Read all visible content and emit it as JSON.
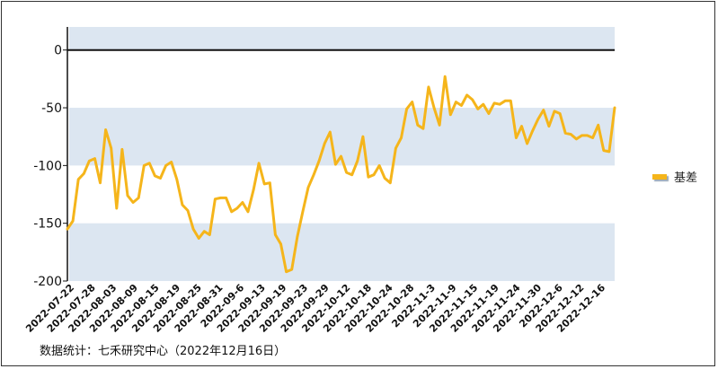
{
  "chart_data": {
    "type": "line",
    "title": "",
    "xlabel": "",
    "ylabel": "",
    "ylim": [
      -200,
      20
    ],
    "yticks": [
      0,
      -50,
      -100,
      -150,
      -200
    ],
    "bands": [
      [
        0,
        20
      ],
      [
        -100,
        -50
      ],
      [
        -200,
        -150
      ]
    ],
    "grid": false,
    "legend_position": "right",
    "x_tick_labels": [
      "2022-07-22",
      "2022-07-28",
      "2022-08-03",
      "2022-08-09",
      "2022-08-15",
      "2022-08-19",
      "2022-08-25",
      "2022-08-31",
      "2022-09-6",
      "2022-09-13",
      "2022-09-19",
      "2022-09-23",
      "2022-09-29",
      "2022-10-12",
      "2022-10-18",
      "2022-10-24",
      "2022-10-28",
      "2022-11-3",
      "2022-11-9",
      "2022-11-15",
      "2022-11-19",
      "2022-11-24",
      "2022-11-30",
      "2022-12-6",
      "2022-12-12",
      "2022-12-16"
    ],
    "series": [
      {
        "name": "基差",
        "color": "#F5B51B",
        "values": [
          -155,
          -148,
          -112,
          -107,
          -96,
          -94,
          -115,
          -69,
          -85,
          -137,
          -86,
          -126,
          -132,
          -128,
          -100,
          -98,
          -109,
          -111,
          -100,
          -97,
          -112,
          -134,
          -139,
          -155,
          -163,
          -157,
          -160,
          -129,
          -128,
          -128,
          -140,
          -137,
          -132,
          -140,
          -121,
          -98,
          -116,
          -115,
          -160,
          -168,
          -192,
          -190,
          -162,
          -140,
          -119,
          -108,
          -96,
          -81,
          -71,
          -99,
          -92,
          -106,
          -108,
          -96,
          -75,
          -110,
          -108,
          -100,
          -111,
          -115,
          -85,
          -76,
          -51,
          -45,
          -65,
          -68,
          -32,
          -50,
          -65,
          -23,
          -56,
          -45,
          -48,
          -39,
          -43,
          -51,
          -47,
          -55,
          -46,
          -47,
          -44,
          -44,
          -76,
          -66,
          -81,
          -70,
          -60,
          -52,
          -66,
          -53,
          -55,
          -72,
          -73,
          -77,
          -74,
          -74,
          -76,
          -65,
          -87,
          -88,
          -50
        ]
      }
    ]
  },
  "legend": {
    "label": "基差"
  },
  "source": {
    "text": "数据统计：七禾研究中心（2022年12月16日）"
  }
}
